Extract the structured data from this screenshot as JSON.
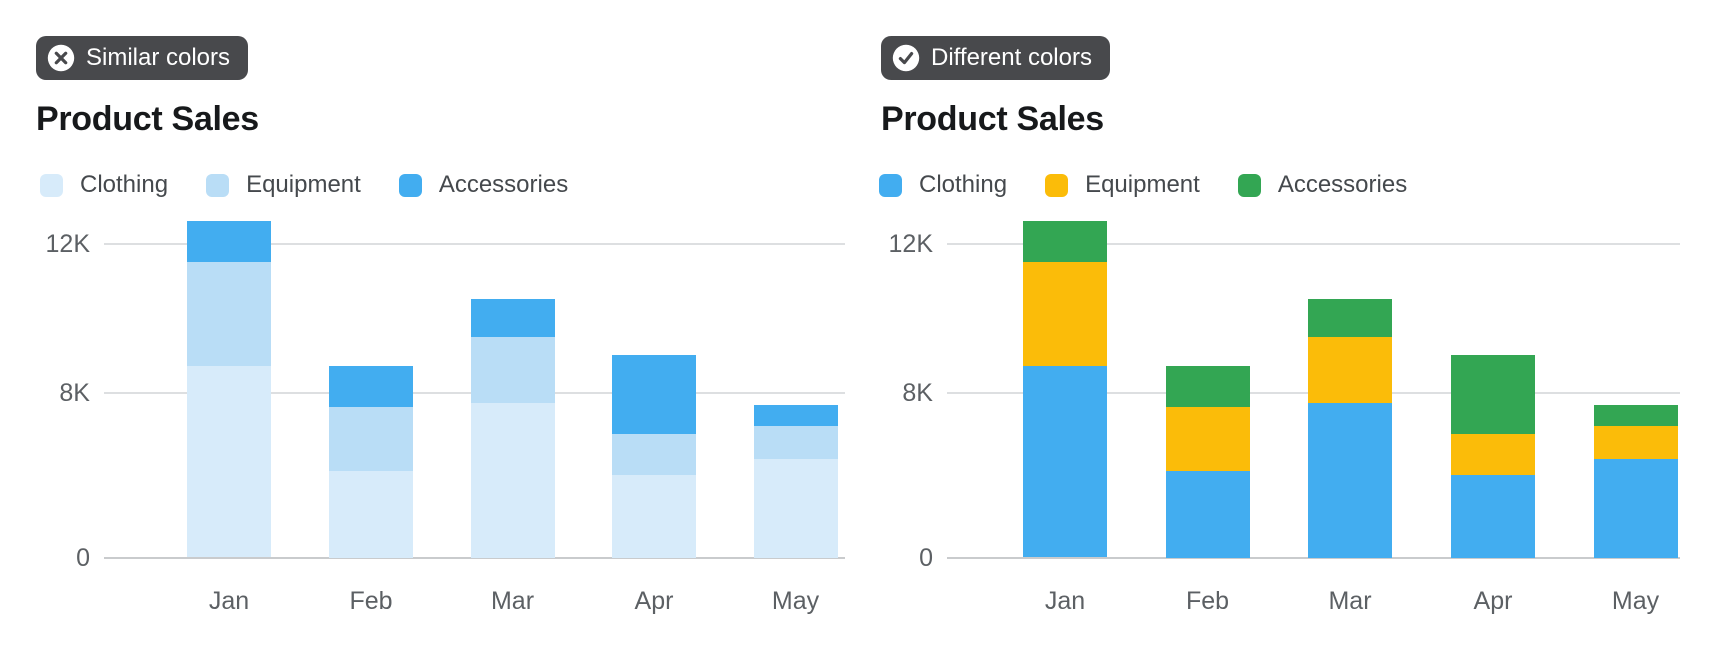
{
  "ui": {
    "background": "#FFFFFF",
    "badge_bg": "#48494C",
    "badge_text": "#FFFFFF",
    "title_text": "#17191B",
    "legend_text": "#45494D",
    "axis_text": "#5C6064",
    "gridline": "#DDDFE1",
    "baseline": "#C9CBCD",
    "icons": [
      {
        "name": "x-circle-icon",
        "meaning": "bad example / don't"
      },
      {
        "name": "check-circle-icon",
        "meaning": "good example / do"
      }
    ]
  },
  "chart_data": [
    {
      "type": "bar",
      "stacked": true,
      "variant_label": "Similar colors",
      "variant_icon": "x-circle-icon",
      "title": "Product Sales",
      "categories": [
        "Jan",
        "Feb",
        "Mar",
        "Apr",
        "May"
      ],
      "series": [
        {
          "name": "Clothing",
          "color": "#D7EBFA",
          "values": [
            8700,
            4200,
            7500,
            4000,
            4800
          ]
        },
        {
          "name": "Equipment",
          "color": "#B9DDF6",
          "values": [
            2800,
            3100,
            2000,
            2000,
            1600
          ]
        },
        {
          "name": "Accessories",
          "color": "#42ADF0",
          "values": [
            1100,
            1400,
            1000,
            3000,
            1000
          ]
        }
      ],
      "totals": [
        12600,
        8700,
        10500,
        9000,
        7400
      ],
      "xlabel": "",
      "ylabel": "",
      "y_ticks": [
        {
          "value": 0,
          "label": "0"
        },
        {
          "value": 8000,
          "label": "8K"
        },
        {
          "value": 12000,
          "label": "12K"
        }
      ],
      "ylim": [
        0,
        12700
      ],
      "grid": "horizontal",
      "legend_position": "top",
      "axis_note": "y tick spacing is nonlinear: the 8K-12K band is stretched relative to 0-8K"
    },
    {
      "type": "bar",
      "stacked": true,
      "variant_label": "Different colors",
      "variant_icon": "check-circle-icon",
      "title": "Product Sales",
      "categories": [
        "Jan",
        "Feb",
        "Mar",
        "Apr",
        "May"
      ],
      "series": [
        {
          "name": "Clothing",
          "color": "#42ADF0",
          "values": [
            8700,
            4200,
            7500,
            4000,
            4800
          ]
        },
        {
          "name": "Equipment",
          "color": "#FBBC09",
          "values": [
            2800,
            3100,
            2000,
            2000,
            1600
          ]
        },
        {
          "name": "Accessories",
          "color": "#33A653",
          "values": [
            1100,
            1400,
            1000,
            3000,
            1000
          ]
        }
      ],
      "totals": [
        12600,
        8700,
        10500,
        9000,
        7400
      ],
      "xlabel": "",
      "ylabel": "",
      "y_ticks": [
        {
          "value": 0,
          "label": "0"
        },
        {
          "value": 8000,
          "label": "8K"
        },
        {
          "value": 12000,
          "label": "12K"
        }
      ],
      "ylim": [
        0,
        12700
      ],
      "grid": "horizontal",
      "legend_position": "top",
      "axis_note": "y tick spacing is nonlinear: the 8K-12K band is stretched relative to 0-8K"
    }
  ]
}
